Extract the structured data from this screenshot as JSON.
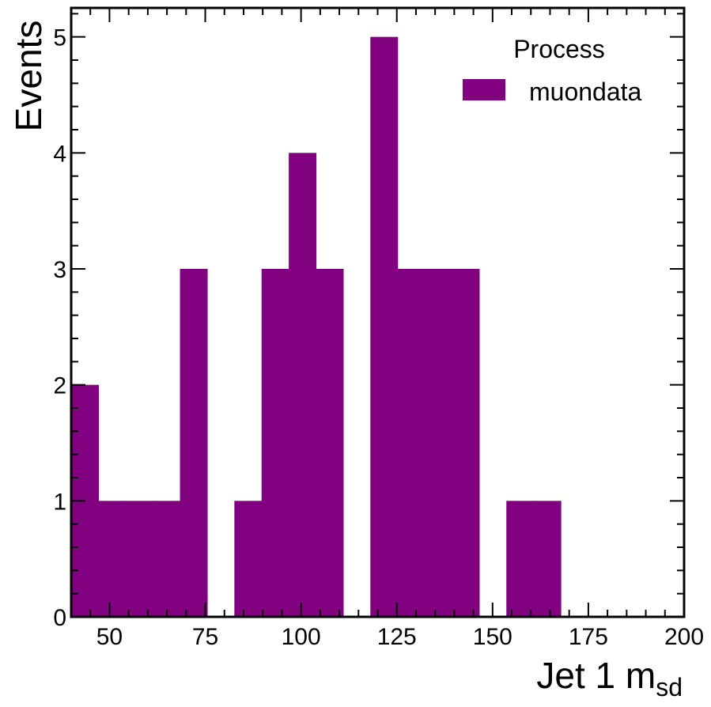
{
  "chart_data": {
    "type": "bar",
    "histogram": true,
    "bin_width": 7.1,
    "bin_edges_start": 40,
    "bin_values": [
      2,
      1,
      1,
      1,
      3,
      0,
      1,
      3,
      4,
      3,
      0,
      5,
      3,
      3,
      3,
      0,
      1,
      1,
      0,
      0,
      0,
      0
    ],
    "xlim": [
      40,
      200
    ],
    "ylim": [
      0,
      5.25
    ],
    "x_ticks": [
      50,
      75,
      100,
      125,
      150,
      175,
      200
    ],
    "x_tick_labels": [
      "50",
      "75",
      "100",
      "125",
      "150",
      "175",
      "200"
    ],
    "y_ticks": [
      0,
      1,
      2,
      3,
      4,
      5
    ],
    "y_tick_labels": [
      "0",
      "1",
      "2",
      "3",
      "4",
      "5"
    ],
    "xlabel_main": "Jet 1 m",
    "xlabel_sub": "sd",
    "ylabel": "Events",
    "legend": {
      "title": "Process",
      "position": "top-right",
      "entries": [
        {
          "name": "muondata",
          "color": "#800080"
        }
      ]
    },
    "series": [
      {
        "name": "muondata",
        "color": "#800080"
      }
    ],
    "grid": false
  }
}
